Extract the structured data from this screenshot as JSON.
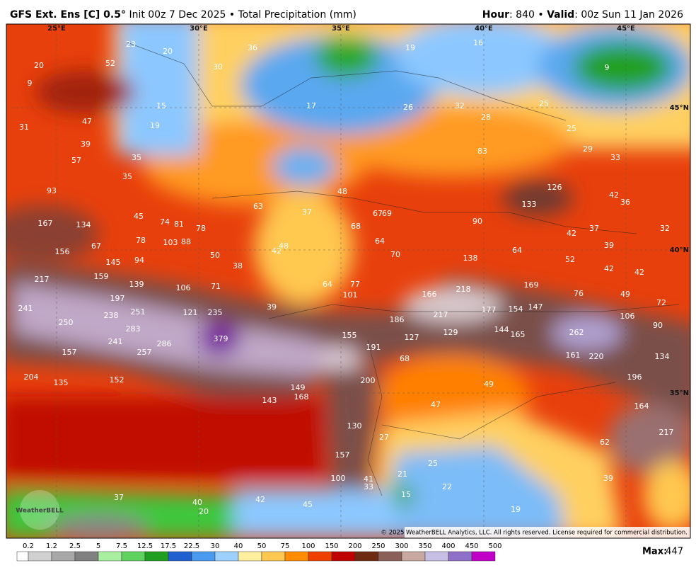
{
  "header": {
    "model": "GFS Ext. Ens [C] 0.5°",
    "init": "Init 00z 7 Dec 2025",
    "separator": "•",
    "product": "Total Precipitation (mm)",
    "hour_label": "Hour",
    "hour": ": 840",
    "valid_label": "Valid",
    "valid": ": 00z Sun 11 Jan 2026"
  },
  "map": {
    "lon_labels": [
      "25°E",
      "30°E",
      "35°E",
      "40°E",
      "45°E"
    ],
    "lat_labels": [
      "45°N",
      "40°N",
      "35°N"
    ],
    "values": [
      23,
      20,
      36,
      19,
      16,
      9,
      20,
      52,
      30,
      9,
      15,
      17,
      26,
      32,
      25,
      31,
      47,
      19,
      28,
      25,
      39,
      35,
      83,
      29,
      33,
      57,
      35,
      93,
      48,
      126,
      42,
      36,
      63,
      37,
      67,
      69,
      133,
      45,
      74,
      81,
      78,
      167,
      134,
      68,
      90,
      42,
      37,
      32,
      67,
      78,
      103,
      88,
      48,
      42,
      64,
      39,
      156,
      50,
      70,
      138,
      64,
      52,
      145,
      94,
      38,
      42,
      42,
      159,
      139,
      106,
      71,
      64,
      77,
      218,
      169,
      217,
      101,
      166,
      76,
      49,
      197,
      72,
      241,
      238,
      251,
      121,
      235,
      39,
      217,
      177,
      154,
      147,
      106,
      250,
      283,
      186,
      90,
      241,
      286,
      379,
      155,
      127,
      129,
      144,
      165,
      262,
      157,
      257,
      191,
      161,
      220,
      134,
      68,
      204,
      135,
      152,
      200,
      49,
      196,
      149,
      168,
      143,
      47,
      164,
      130,
      217,
      27,
      62,
      157,
      25,
      21,
      100,
      41,
      39,
      33,
      22,
      37,
      15,
      42,
      40,
      45,
      20,
      19
    ],
    "logo": "WeatherBELL",
    "copyright": "© 2025 WeatherBELL Analytics, LLC. All rights reserved. License required for commercial distribution."
  },
  "colorbar": {
    "ticks": [
      0.2,
      1.2,
      2.5,
      5,
      7.5,
      12.5,
      17.5,
      22.5,
      30,
      40,
      50,
      75,
      100,
      150,
      200,
      250,
      300,
      350,
      400,
      450,
      500
    ],
    "colors": [
      "#ffffff",
      "#d0d0d0",
      "#a8a8a8",
      "#808080",
      "#a8f0a0",
      "#5fd25f",
      "#1f9e1f",
      "#1f5fd0",
      "#4a9af0",
      "#9cd0ff",
      "#fff0a0",
      "#ffc850",
      "#ff8c00",
      "#f04000",
      "#c00000",
      "#6e2a10",
      "#8a6058",
      "#c8a8a0",
      "#c8c0e4",
      "#8f70c8",
      "#c000c8"
    ]
  },
  "footer": {
    "max_label": "Max:",
    "max": 447
  }
}
